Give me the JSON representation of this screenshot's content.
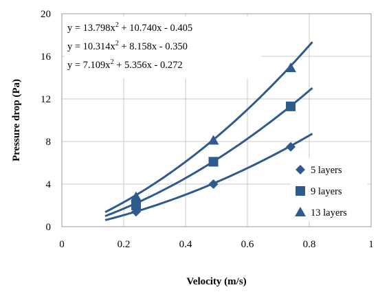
{
  "chart_data": {
    "type": "scatter",
    "xlabel": "Velocity  (m/s)",
    "ylabel": "Pressure drop  (Pa)",
    "xlim": [
      0,
      1
    ],
    "ylim": [
      0,
      20
    ],
    "x_ticks": [
      "0",
      "0.2",
      "0.4",
      "0.6",
      "0.8",
      "1"
    ],
    "y_ticks": [
      "0",
      "4",
      "8",
      "12",
      "16",
      "20"
    ],
    "grid": true,
    "legend_position": "bottom-right",
    "color": "#2E5A8C",
    "equations": [
      {
        "prefix": "y = 13.798x",
        "sup": "2",
        "suffix": " + 10.740x - 0.405"
      },
      {
        "prefix": "y = 10.314x",
        "sup": "2",
        "suffix": " + 8.158x - 0.350"
      },
      {
        "prefix": "y = 7.109x",
        "sup": "2",
        "suffix": " + 5.356x - 0.272"
      }
    ],
    "series": [
      {
        "name": "5 layers",
        "marker": "diamond",
        "x": [
          0.24,
          0.49,
          0.74
        ],
        "y": [
          1.4,
          4.0,
          7.5
        ],
        "fit": [
          7.109,
          5.356,
          -0.272
        ],
        "fit_range": [
          0.14,
          0.81
        ]
      },
      {
        "name": "9 layers",
        "marker": "square",
        "x": [
          0.24,
          0.49,
          0.74
        ],
        "y": [
          2.0,
          6.1,
          11.3
        ],
        "fit": [
          10.314,
          8.158,
          -0.35
        ],
        "fit_range": [
          0.14,
          0.81
        ]
      },
      {
        "name": "13 layers",
        "marker": "triangle",
        "x": [
          0.24,
          0.49,
          0.74
        ],
        "y": [
          2.8,
          8.1,
          14.9
        ],
        "fit": [
          13.798,
          10.74,
          -0.405
        ],
        "fit_range": [
          0.14,
          0.81
        ]
      }
    ]
  }
}
